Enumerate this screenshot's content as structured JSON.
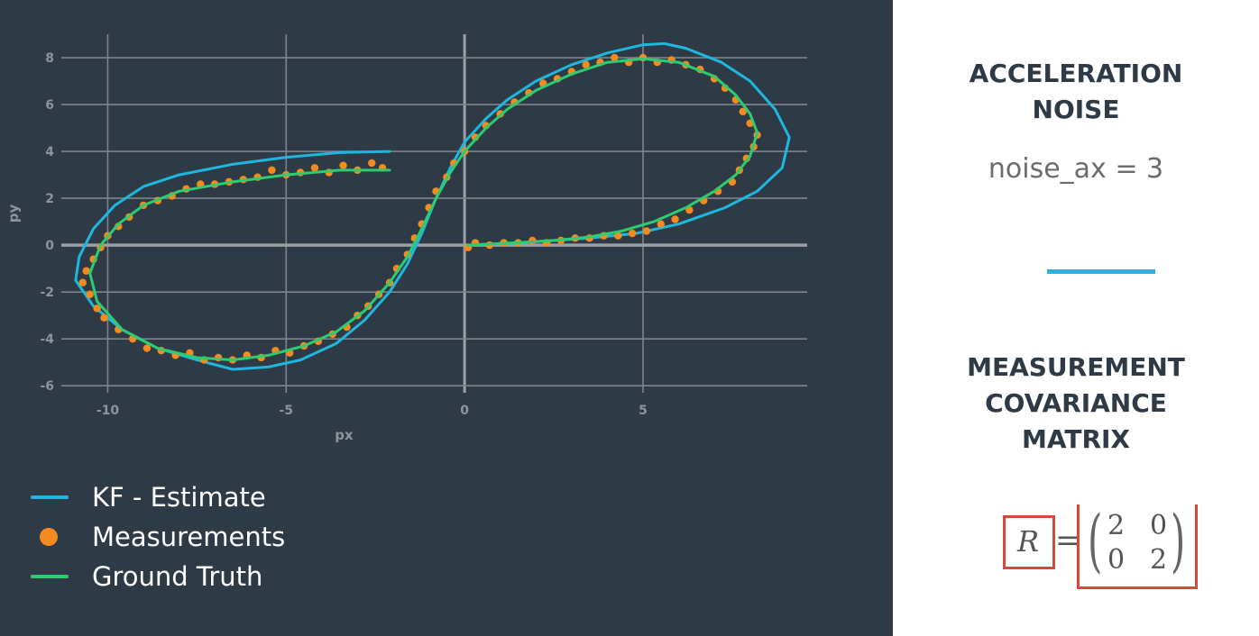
{
  "chart_data": {
    "type": "line",
    "xlabel": "px",
    "ylabel": "py",
    "xlim": [
      -11.3,
      9.6
    ],
    "ylim": [
      -6.3,
      9.0
    ],
    "x_ticks": [
      -10,
      -5,
      0,
      5
    ],
    "y_ticks": [
      -6,
      -4,
      -2,
      0,
      2,
      4,
      6,
      8
    ],
    "grid": true,
    "legend_position": "bottom-left",
    "series": [
      {
        "name": "KF - Estimate",
        "kind": "line",
        "color": "#1fb7de",
        "points": [
          [
            -2.1,
            4.0
          ],
          [
            -3.5,
            3.95
          ],
          [
            -5.0,
            3.75
          ],
          [
            -6.5,
            3.45
          ],
          [
            -8.0,
            3.0
          ],
          [
            -9.0,
            2.5
          ],
          [
            -9.8,
            1.7
          ],
          [
            -10.4,
            0.7
          ],
          [
            -10.8,
            -0.5
          ],
          [
            -10.9,
            -1.5
          ],
          [
            -10.4,
            -2.6
          ],
          [
            -9.6,
            -3.6
          ],
          [
            -8.6,
            -4.4
          ],
          [
            -7.5,
            -4.9
          ],
          [
            -6.5,
            -5.3
          ],
          [
            -5.5,
            -5.2
          ],
          [
            -4.6,
            -4.9
          ],
          [
            -3.6,
            -4.2
          ],
          [
            -2.8,
            -3.2
          ],
          [
            -2.1,
            -2.0
          ],
          [
            -1.6,
            -0.8
          ],
          [
            -1.2,
            0.5
          ],
          [
            -0.8,
            2.0
          ],
          [
            -0.4,
            3.3
          ],
          [
            0.0,
            4.4
          ],
          [
            0.6,
            5.4
          ],
          [
            1.2,
            6.2
          ],
          [
            2.0,
            7.0
          ],
          [
            3.0,
            7.7
          ],
          [
            4.0,
            8.2
          ],
          [
            5.0,
            8.55
          ],
          [
            5.6,
            8.6
          ],
          [
            6.2,
            8.4
          ],
          [
            7.2,
            7.8
          ],
          [
            8.0,
            7.0
          ],
          [
            8.7,
            5.8
          ],
          [
            9.1,
            4.6
          ],
          [
            8.9,
            3.3
          ],
          [
            8.2,
            2.3
          ],
          [
            7.3,
            1.6
          ],
          [
            6.0,
            0.9
          ],
          [
            4.8,
            0.5
          ],
          [
            3.5,
            0.3
          ],
          [
            2.0,
            0.15
          ],
          [
            0.1,
            0.0
          ]
        ]
      },
      {
        "name": "Measurements",
        "kind": "scatter",
        "color": "#f58a1f",
        "points": [
          [
            -2.3,
            3.3
          ],
          [
            -2.6,
            3.5
          ],
          [
            -3.0,
            3.2
          ],
          [
            -3.4,
            3.4
          ],
          [
            -3.8,
            3.1
          ],
          [
            -4.2,
            3.3
          ],
          [
            -4.6,
            3.1
          ],
          [
            -5.0,
            3.0
          ],
          [
            -5.4,
            3.2
          ],
          [
            -5.8,
            2.9
          ],
          [
            -6.2,
            2.8
          ],
          [
            -6.6,
            2.7
          ],
          [
            -7.0,
            2.6
          ],
          [
            -7.4,
            2.6
          ],
          [
            -7.8,
            2.4
          ],
          [
            -8.2,
            2.1
          ],
          [
            -8.6,
            1.9
          ],
          [
            -9.0,
            1.7
          ],
          [
            -9.4,
            1.2
          ],
          [
            -9.7,
            0.8
          ],
          [
            -10.0,
            0.4
          ],
          [
            -10.2,
            -0.1
          ],
          [
            -10.4,
            -0.6
          ],
          [
            -10.6,
            -1.1
          ],
          [
            -10.7,
            -1.6
          ],
          [
            -10.5,
            -2.1
          ],
          [
            -10.3,
            -2.7
          ],
          [
            -10.1,
            -3.1
          ],
          [
            -9.7,
            -3.6
          ],
          [
            -9.3,
            -4.0
          ],
          [
            -8.9,
            -4.4
          ],
          [
            -8.5,
            -4.5
          ],
          [
            -8.1,
            -4.7
          ],
          [
            -7.7,
            -4.6
          ],
          [
            -7.3,
            -4.9
          ],
          [
            -6.9,
            -4.8
          ],
          [
            -6.5,
            -4.9
          ],
          [
            -6.1,
            -4.7
          ],
          [
            -5.7,
            -4.8
          ],
          [
            -5.3,
            -4.5
          ],
          [
            -4.9,
            -4.6
          ],
          [
            -4.5,
            -4.3
          ],
          [
            -4.1,
            -4.1
          ],
          [
            -3.7,
            -3.8
          ],
          [
            -3.3,
            -3.5
          ],
          [
            -3.0,
            -3.0
          ],
          [
            -2.7,
            -2.6
          ],
          [
            -2.4,
            -2.1
          ],
          [
            -2.1,
            -1.6
          ],
          [
            -1.9,
            -1.0
          ],
          [
            -1.6,
            -0.4
          ],
          [
            -1.4,
            0.3
          ],
          [
            -1.2,
            0.9
          ],
          [
            -1.0,
            1.6
          ],
          [
            -0.8,
            2.3
          ],
          [
            -0.5,
            2.9
          ],
          [
            -0.3,
            3.5
          ],
          [
            0.0,
            4.0
          ],
          [
            0.3,
            4.6
          ],
          [
            0.6,
            5.1
          ],
          [
            1.0,
            5.6
          ],
          [
            1.4,
            6.1
          ],
          [
            1.8,
            6.5
          ],
          [
            2.2,
            6.9
          ],
          [
            2.6,
            7.1
          ],
          [
            3.0,
            7.4
          ],
          [
            3.4,
            7.7
          ],
          [
            3.8,
            7.8
          ],
          [
            4.2,
            8.0
          ],
          [
            4.6,
            7.8
          ],
          [
            5.0,
            8.0
          ],
          [
            5.4,
            7.8
          ],
          [
            5.8,
            7.9
          ],
          [
            6.2,
            7.7
          ],
          [
            6.6,
            7.5
          ],
          [
            7.0,
            7.1
          ],
          [
            7.3,
            6.7
          ],
          [
            7.6,
            6.2
          ],
          [
            7.8,
            5.7
          ],
          [
            8.0,
            5.2
          ],
          [
            8.2,
            4.7
          ],
          [
            8.1,
            4.2
          ],
          [
            7.9,
            3.7
          ],
          [
            7.7,
            3.2
          ],
          [
            7.5,
            2.7
          ],
          [
            7.1,
            2.3
          ],
          [
            6.7,
            1.9
          ],
          [
            6.3,
            1.5
          ],
          [
            5.9,
            1.1
          ],
          [
            5.5,
            0.9
          ],
          [
            5.1,
            0.6
          ],
          [
            4.7,
            0.5
          ],
          [
            4.3,
            0.4
          ],
          [
            3.9,
            0.4
          ],
          [
            3.5,
            0.3
          ],
          [
            3.1,
            0.3
          ],
          [
            2.7,
            0.2
          ],
          [
            2.3,
            0.1
          ],
          [
            1.9,
            0.2
          ],
          [
            1.5,
            0.1
          ],
          [
            1.1,
            0.1
          ],
          [
            0.7,
            0.0
          ],
          [
            0.3,
            0.1
          ],
          [
            0.1,
            -0.1
          ]
        ]
      },
      {
        "name": "Ground Truth",
        "kind": "line",
        "color": "#2ecc71",
        "points": [
          [
            -2.1,
            3.2
          ],
          [
            -3.5,
            3.2
          ],
          [
            -5.0,
            3.0
          ],
          [
            -6.5,
            2.7
          ],
          [
            -8.0,
            2.3
          ],
          [
            -9.0,
            1.7
          ],
          [
            -9.7,
            0.9
          ],
          [
            -10.2,
            0.0
          ],
          [
            -10.5,
            -1.2
          ],
          [
            -10.3,
            -2.4
          ],
          [
            -9.6,
            -3.6
          ],
          [
            -8.6,
            -4.4
          ],
          [
            -7.5,
            -4.8
          ],
          [
            -6.5,
            -4.9
          ],
          [
            -5.5,
            -4.7
          ],
          [
            -4.5,
            -4.3
          ],
          [
            -3.6,
            -3.7
          ],
          [
            -2.8,
            -2.8
          ],
          [
            -2.1,
            -1.6
          ],
          [
            -1.6,
            -0.5
          ],
          [
            -1.2,
            0.7
          ],
          [
            -0.8,
            2.0
          ],
          [
            -0.4,
            3.1
          ],
          [
            0.0,
            4.0
          ],
          [
            0.6,
            5.0
          ],
          [
            1.2,
            5.8
          ],
          [
            2.0,
            6.6
          ],
          [
            3.0,
            7.3
          ],
          [
            4.0,
            7.8
          ],
          [
            5.0,
            7.95
          ],
          [
            6.0,
            7.8
          ],
          [
            7.0,
            7.2
          ],
          [
            7.6,
            6.4
          ],
          [
            8.0,
            5.6
          ],
          [
            8.2,
            4.8
          ],
          [
            8.0,
            3.8
          ],
          [
            7.6,
            3.0
          ],
          [
            7.0,
            2.3
          ],
          [
            6.2,
            1.6
          ],
          [
            5.3,
            1.0
          ],
          [
            4.4,
            0.6
          ],
          [
            3.5,
            0.35
          ],
          [
            2.5,
            0.2
          ],
          [
            1.5,
            0.1
          ],
          [
            0.1,
            0.0
          ]
        ]
      }
    ]
  },
  "legend": {
    "items": [
      {
        "label": "KF - Estimate"
      },
      {
        "label": "Measurements"
      },
      {
        "label": "Ground Truth"
      }
    ]
  },
  "panel": {
    "acceleration_title_1": "ACCELERATION",
    "acceleration_title_2": "NOISE",
    "noise_value": "noise_ax = 3",
    "measurement_title_1": "MEASUREMENT",
    "measurement_title_2": "COVARIANCE",
    "measurement_title_3": "MATRIX",
    "matrix_symbol": "R",
    "equals": "=",
    "matrix": [
      "2",
      "0",
      "0",
      "2"
    ],
    "accent_color": "#1fb7de",
    "highlight_color": "#d9473a"
  }
}
